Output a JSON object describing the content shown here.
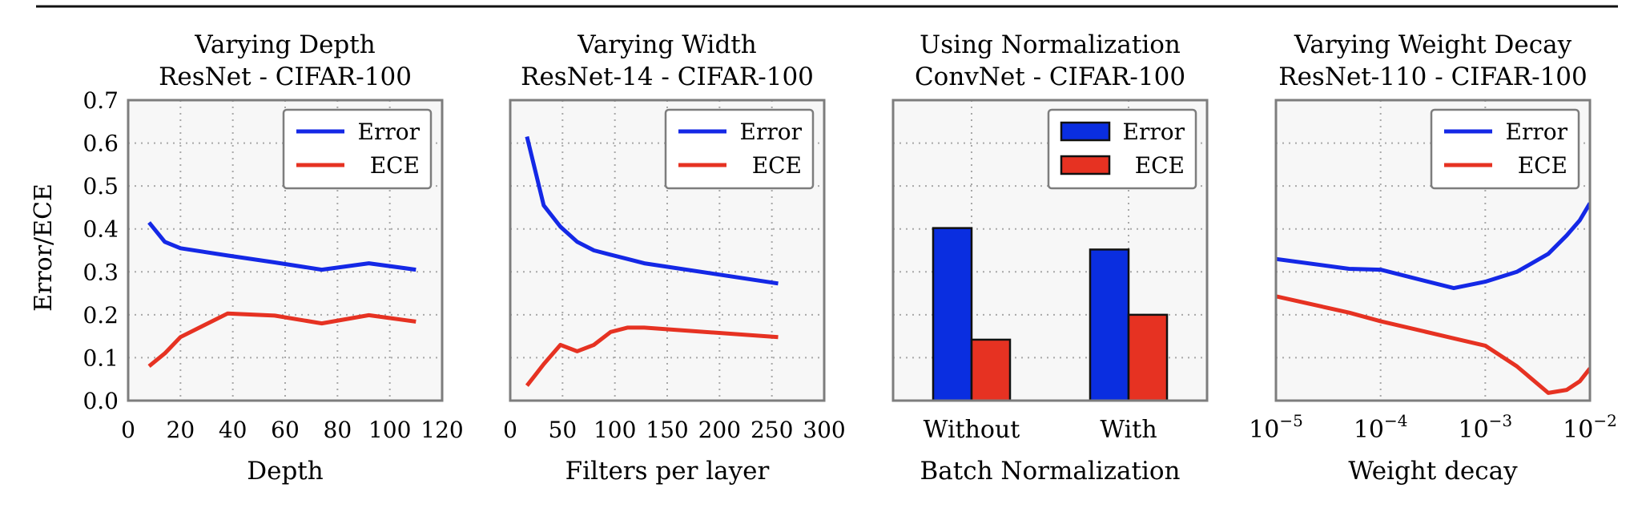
{
  "ylabel": "Error/ECE",
  "chart_data": [
    {
      "type": "line",
      "title": "Varying Depth",
      "subtitle": "ResNet - CIFAR-100",
      "xlabel": "Depth",
      "ylabel": "Error/ECE",
      "xscale": "linear",
      "xlim": [
        0,
        120
      ],
      "ylim": [
        0,
        0.7
      ],
      "xticks": [
        0,
        20,
        40,
        60,
        80,
        100,
        120
      ],
      "xtick_labels": [
        "0",
        "20",
        "40",
        "60",
        "80",
        "100",
        "120"
      ],
      "yticks": [
        0,
        0.1,
        0.2,
        0.3,
        0.4,
        0.5,
        0.6,
        0.7
      ],
      "ytick_labels": [
        "0.0",
        "0.1",
        "0.2",
        "0.3",
        "0.4",
        "0.5",
        "0.6",
        "0.7"
      ],
      "grid": true,
      "legend_position": "top-right",
      "series": [
        {
          "name": "Error",
          "color": "#1428e6",
          "x": [
            8,
            14,
            20,
            38,
            56,
            74,
            92,
            110
          ],
          "values": [
            0.415,
            0.37,
            0.355,
            0.338,
            0.322,
            0.305,
            0.32,
            0.305
          ]
        },
        {
          "name": "ECE",
          "color": "#e63222",
          "x": [
            8,
            14,
            20,
            38,
            56,
            74,
            92,
            110
          ],
          "values": [
            0.08,
            0.11,
            0.148,
            0.203,
            0.198,
            0.18,
            0.199,
            0.184
          ]
        }
      ]
    },
    {
      "type": "line",
      "title": "Varying Width",
      "subtitle": "ResNet-14 - CIFAR-100",
      "xlabel": "Filters per layer",
      "xscale": "linear",
      "xlim": [
        0,
        300
      ],
      "ylim": [
        0,
        0.7
      ],
      "xticks": [
        0,
        50,
        100,
        150,
        200,
        250,
        300
      ],
      "xtick_labels": [
        "0",
        "50",
        "100",
        "150",
        "200",
        "250",
        "300"
      ],
      "yticks": [
        0,
        0.1,
        0.2,
        0.3,
        0.4,
        0.5,
        0.6,
        0.7
      ],
      "grid": true,
      "legend_position": "top-right",
      "series": [
        {
          "name": "Error",
          "color": "#1428e6",
          "x": [
            16,
            32,
            48,
            64,
            80,
            96,
            112,
            128,
            256
          ],
          "values": [
            0.615,
            0.455,
            0.405,
            0.37,
            0.35,
            0.34,
            0.33,
            0.32,
            0.273
          ]
        },
        {
          "name": "ECE",
          "color": "#e63222",
          "x": [
            16,
            24,
            32,
            48,
            64,
            80,
            96,
            112,
            128,
            256
          ],
          "values": [
            0.035,
            0.06,
            0.085,
            0.13,
            0.115,
            0.13,
            0.16,
            0.17,
            0.17,
            0.148
          ]
        }
      ]
    },
    {
      "type": "bar",
      "title": "Using Normalization",
      "subtitle": "ConvNet - CIFAR-100",
      "xlabel": "Batch Normalization",
      "categories": [
        "Without",
        "With"
      ],
      "ylim": [
        0,
        0.7
      ],
      "yticks": [
        0,
        0.1,
        0.2,
        0.3,
        0.4,
        0.5,
        0.6,
        0.7
      ],
      "grid": true,
      "legend_position": "top-right",
      "series": [
        {
          "name": "Error",
          "color": "#0a2ee0",
          "values": [
            0.402,
            0.352
          ]
        },
        {
          "name": "ECE",
          "color": "#e63222",
          "values": [
            0.142,
            0.2
          ]
        }
      ]
    },
    {
      "type": "line",
      "title": "Varying Weight Decay",
      "subtitle": "ResNet-110 - CIFAR-100",
      "xlabel": "Weight decay",
      "xscale": "log",
      "xlim": [
        1e-05,
        0.01
      ],
      "ylim": [
        0,
        0.7
      ],
      "xticks": [
        1e-05,
        0.0001,
        0.001,
        0.01
      ],
      "xtick_labels": [
        {
          "base": "10",
          "exp": "−5"
        },
        {
          "base": "10",
          "exp": "−4"
        },
        {
          "base": "10",
          "exp": "−3"
        },
        {
          "base": "10",
          "exp": "−2"
        }
      ],
      "yticks": [
        0,
        0.1,
        0.2,
        0.3,
        0.4,
        0.5,
        0.6,
        0.7
      ],
      "grid": true,
      "legend_position": "top-right",
      "series": [
        {
          "name": "Error",
          "color": "#1428e6",
          "x": [
            1e-05,
            5e-05,
            0.0001,
            0.0005,
            0.001,
            0.002,
            0.004,
            0.006,
            0.008,
            0.01
          ],
          "values": [
            0.33,
            0.307,
            0.305,
            0.262,
            0.277,
            0.3,
            0.342,
            0.385,
            0.42,
            0.46
          ]
        },
        {
          "name": "ECE",
          "color": "#e63222",
          "x": [
            1e-05,
            5e-05,
            0.0001,
            0.0005,
            0.001,
            0.002,
            0.004,
            0.006,
            0.008,
            0.01
          ],
          "values": [
            0.243,
            0.205,
            0.185,
            0.145,
            0.128,
            0.08,
            0.018,
            0.025,
            0.045,
            0.075
          ]
        }
      ]
    }
  ]
}
